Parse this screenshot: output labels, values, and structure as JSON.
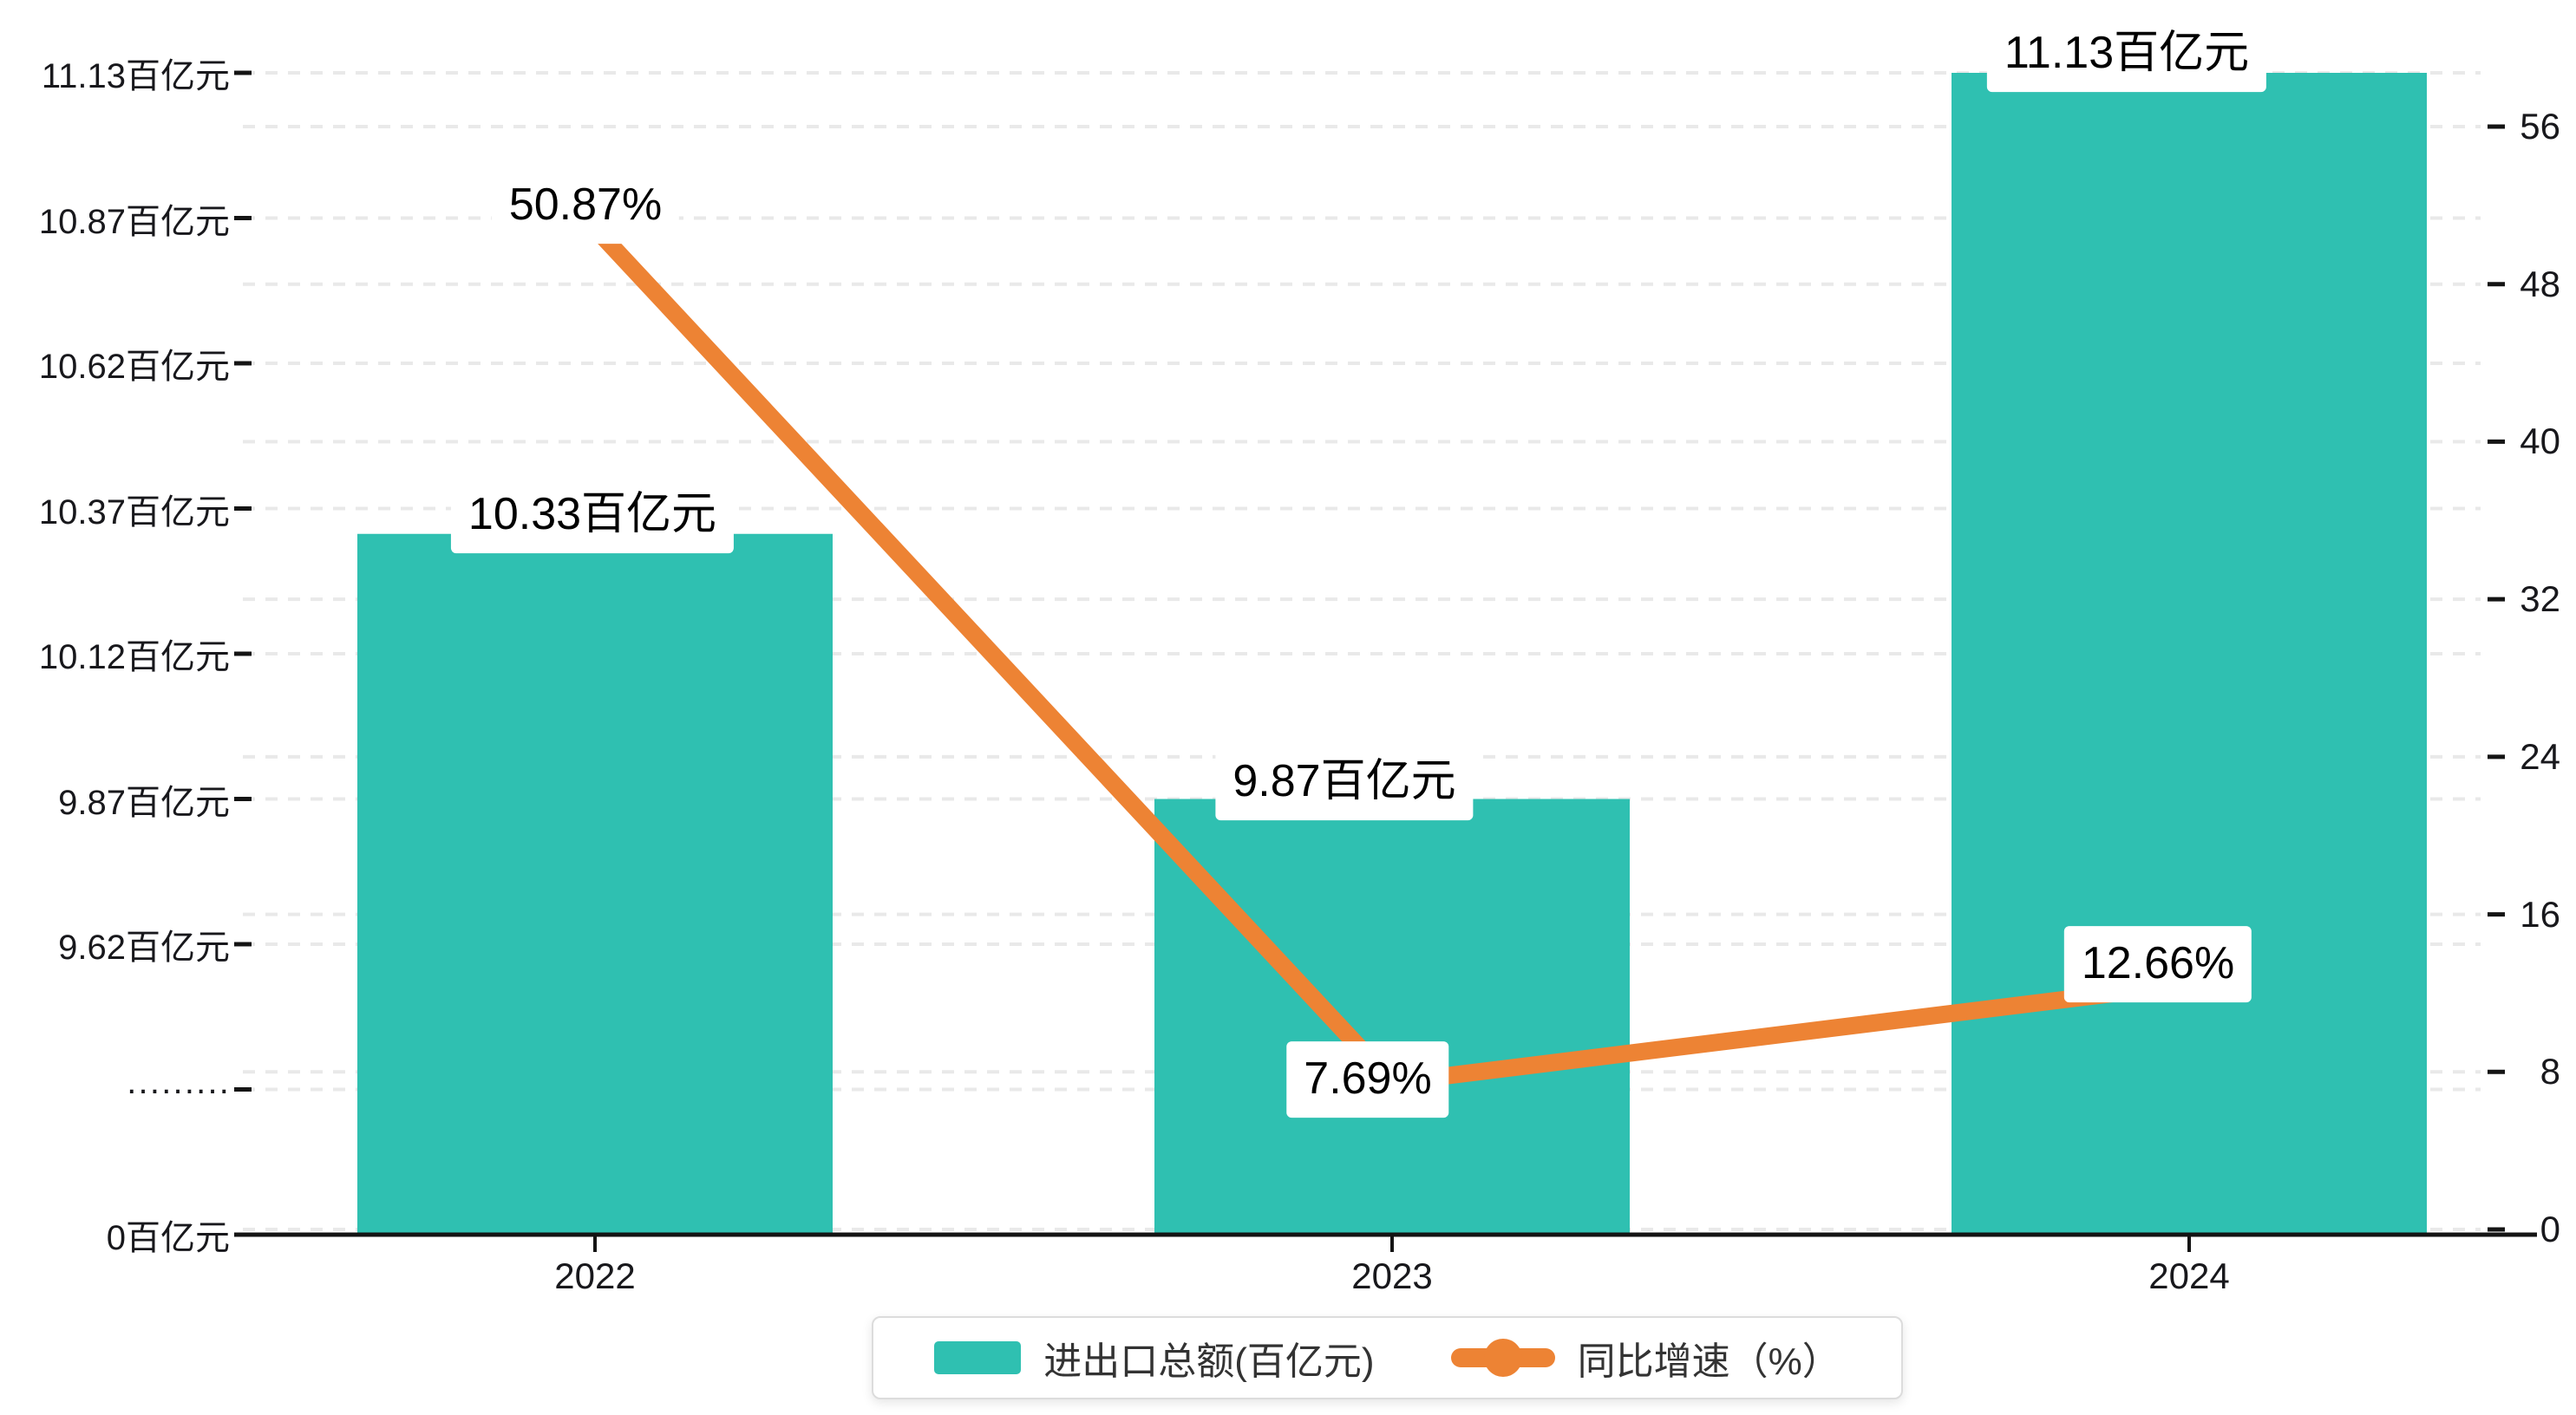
{
  "chart_data": {
    "type": "combo",
    "categories": [
      "2022",
      "2023",
      "2024"
    ],
    "series": [
      {
        "name": "进出口总额(百亿元)",
        "type": "bar",
        "unit": "百亿元",
        "values": [
          10.33,
          9.87,
          11.13
        ],
        "point_labels": [
          "10.33百亿元",
          "9.87百亿元",
          "11.13百亿元"
        ],
        "color": "#2fc0b1"
      },
      {
        "name": "同比增速（%）",
        "type": "line",
        "unit": "%",
        "values": [
          50.87,
          7.69,
          12.66
        ],
        "point_labels": [
          "50.87%",
          "7.69%",
          "12.66%"
        ],
        "color": "#ed8334"
      }
    ],
    "left_axis": {
      "tick_labels": [
        "11.13百亿元",
        "10.87百亿元",
        "10.62百亿元",
        "10.37百亿元",
        "10.12百亿元",
        "9.87百亿元",
        "9.62百亿元",
        "·········",
        "0百亿元"
      ],
      "axis_break": true,
      "break_label": "·········"
    },
    "right_axis": {
      "tick_labels": [
        "56",
        "48",
        "40",
        "32",
        "24",
        "16",
        "8",
        "0"
      ],
      "min": 0,
      "interval": 8
    },
    "legend": {
      "position": "bottom",
      "entries": [
        "进出口总额(百亿元)",
        "同比增速（%）"
      ]
    },
    "grid": "dashed horizontal gridlines",
    "title": "",
    "xlabel": "",
    "ylabel_left": "百亿元",
    "ylabel_right": "%"
  },
  "colors": {
    "bar": "#2fc0b1",
    "line": "#ed8334",
    "gridline": "#e9e9e9",
    "axis_line": "#141414",
    "axis_text": "#18181c",
    "value_text": "#000000",
    "legend_border": "#dcdcdc",
    "background": "#ffffff"
  }
}
